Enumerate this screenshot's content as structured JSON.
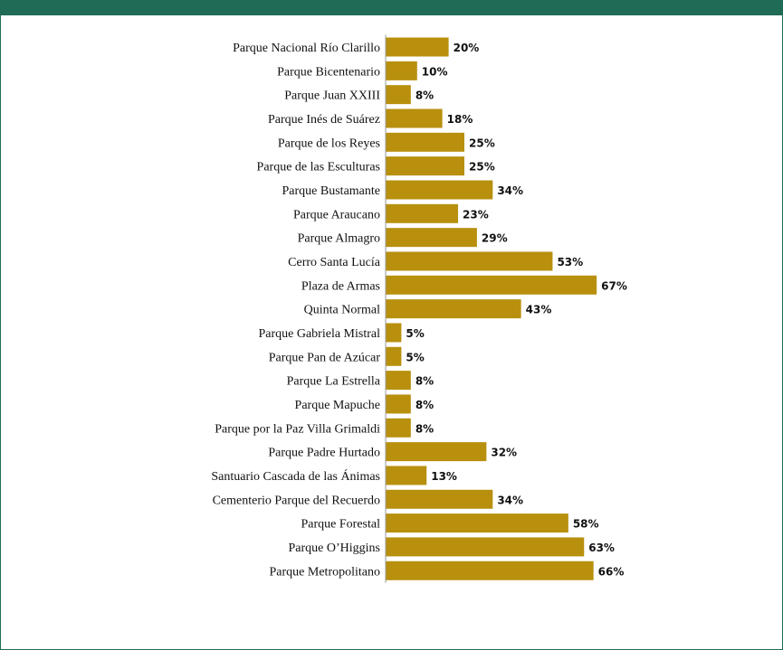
{
  "header": {
    "title": "",
    "bg_color": "#1f6b55"
  },
  "chart_data": {
    "type": "bar",
    "orientation": "horizontal",
    "bar_color": "#b8900e",
    "grid": false,
    "xlim": [
      0,
      100
    ],
    "categories": [
      "Parque Nacional Río Clarillo",
      "Parque Bicentenario",
      "Parque Juan XXIII",
      "Parque Inés de Suárez",
      "Parque de los Reyes",
      "Parque de las Esculturas",
      "Parque Bustamante",
      "Parque Araucano",
      "Parque Almagro",
      "Cerro Santa Lucía",
      "Plaza de Armas",
      "Quinta Normal",
      "Parque Gabriela Mistral",
      "Parque Pan de Azúcar",
      "Parque La Estrella",
      "Parque Mapuche",
      "Parque por la Paz Villa Grimaldi",
      "Parque Padre Hurtado",
      "Santuario Cascada de las Ánimas",
      "Cementerio Parque del Recuerdo",
      "Parque Forestal",
      "Parque O’Higgins",
      "Parque Metropolitano"
    ],
    "values": [
      20,
      10,
      8,
      18,
      25,
      25,
      34,
      23,
      29,
      53,
      67,
      43,
      5,
      5,
      8,
      8,
      8,
      32,
      13,
      34,
      58,
      63,
      66
    ],
    "value_labels": [
      "20%",
      "10%",
      "8%",
      "18%",
      "25%",
      "25%",
      "34%",
      "23%",
      "29%",
      "53%",
      "67%",
      "43%",
      "5%",
      "5%",
      "8%",
      "8%",
      "8%",
      "32%",
      "13%",
      "34%",
      "58%",
      "63%",
      "66%"
    ]
  }
}
